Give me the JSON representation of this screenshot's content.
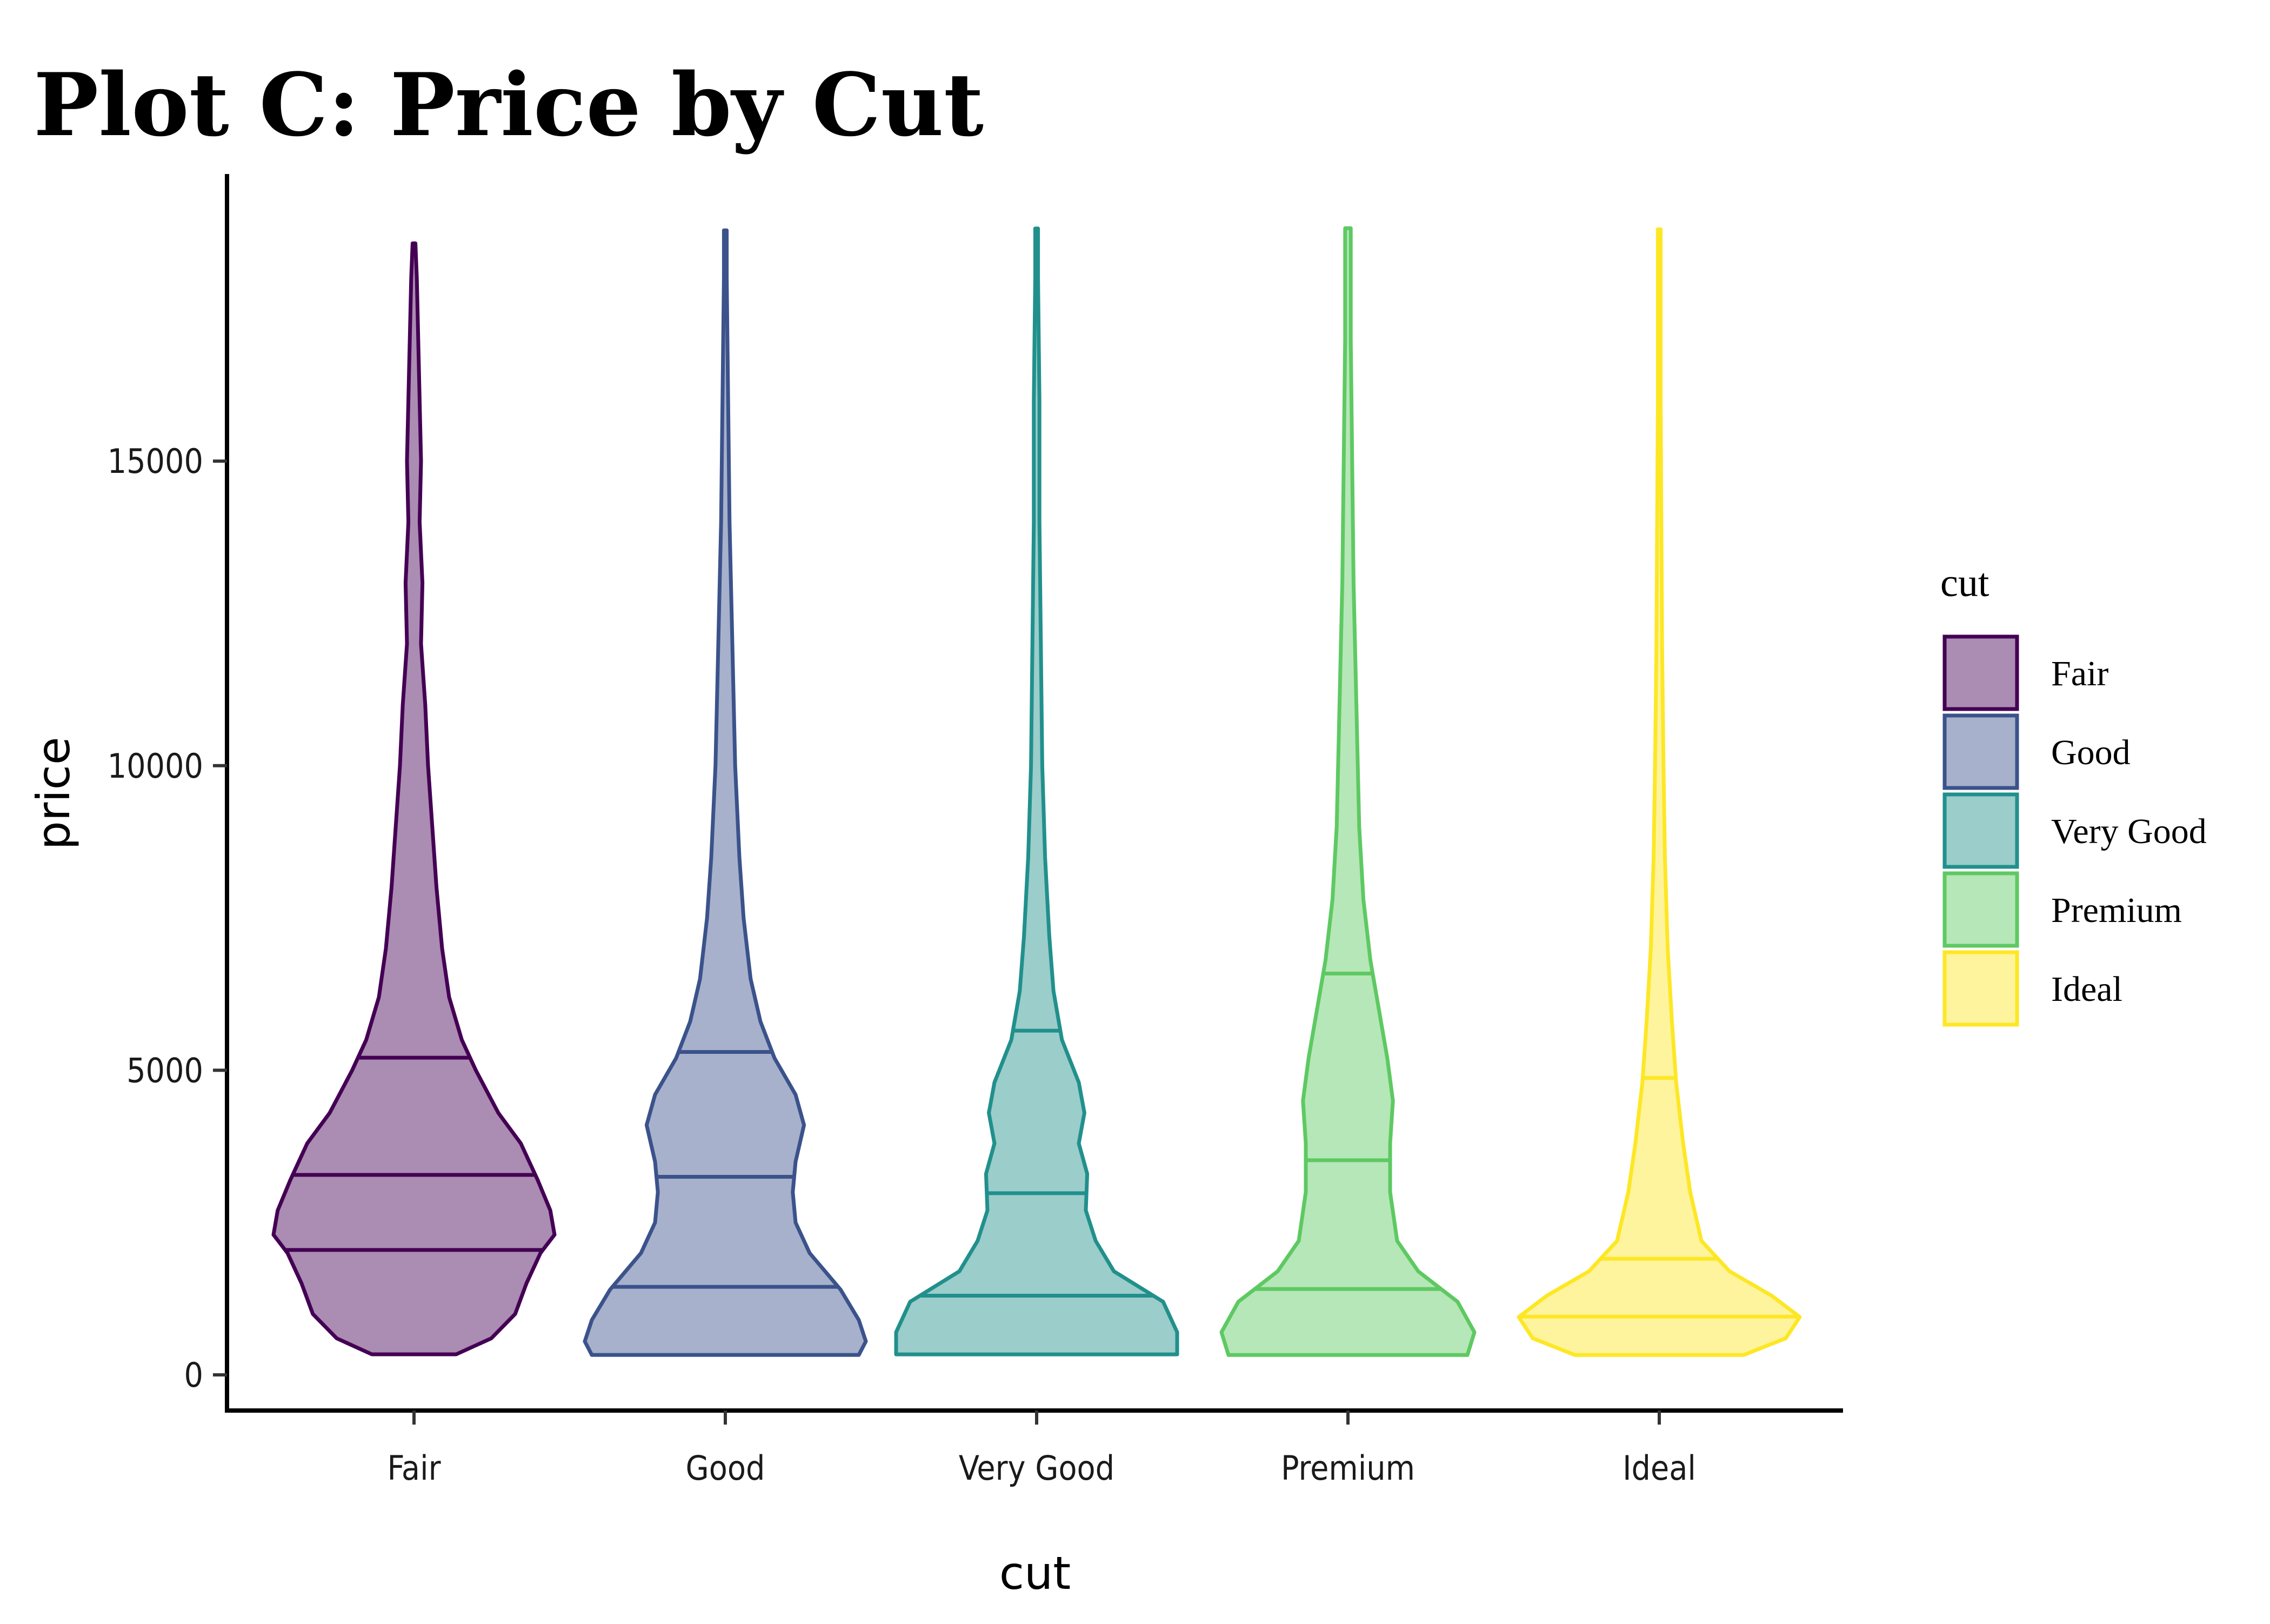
{
  "chart_data": {
    "type": "violin",
    "title": "Plot C: Price by Cut",
    "xlabel": "cut",
    "ylabel": "price",
    "categories": [
      "Fair",
      "Good",
      "Very Good",
      "Premium",
      "Ideal"
    ],
    "ylim": [
      0,
      19000
    ],
    "yticks": [
      0,
      5000,
      10000,
      15000
    ],
    "grid": false,
    "legend": {
      "title": "cut",
      "placement": "right",
      "entries": [
        "Fair",
        "Good",
        "Very Good",
        "Premium",
        "Ideal"
      ]
    },
    "colors": [
      "#440154",
      "#3b528b",
      "#21908c",
      "#5ec962",
      "#fde725"
    ],
    "fill_opacity": 0.45,
    "series": [
      {
        "category": "Fair",
        "min": 337,
        "max": 18574,
        "quantiles": [
          2050,
          3282,
          5206
        ],
        "density": [
          [
            337,
            0.3
          ],
          [
            600,
            0.55
          ],
          [
            1000,
            0.72
          ],
          [
            1500,
            0.8
          ],
          [
            2000,
            0.9
          ],
          [
            2300,
            1.0
          ],
          [
            2700,
            0.97
          ],
          [
            3200,
            0.88
          ],
          [
            3800,
            0.76
          ],
          [
            4300,
            0.6
          ],
          [
            5000,
            0.44
          ],
          [
            5500,
            0.34
          ],
          [
            6200,
            0.25
          ],
          [
            7000,
            0.2
          ],
          [
            8000,
            0.16
          ],
          [
            9000,
            0.13
          ],
          [
            10000,
            0.1
          ],
          [
            11000,
            0.08
          ],
          [
            12000,
            0.05
          ],
          [
            13000,
            0.06
          ],
          [
            14000,
            0.04
          ],
          [
            15000,
            0.05
          ],
          [
            16000,
            0.04
          ],
          [
            17000,
            0.03
          ],
          [
            18000,
            0.02
          ],
          [
            18574,
            0.01
          ]
        ]
      },
      {
        "category": "Good",
        "min": 327,
        "max": 18788,
        "quantiles": [
          1445,
          3251,
          5301
        ],
        "density": [
          [
            327,
            0.95
          ],
          [
            550,
            1.0
          ],
          [
            900,
            0.95
          ],
          [
            1400,
            0.82
          ],
          [
            2000,
            0.6
          ],
          [
            2500,
            0.5
          ],
          [
            3000,
            0.48
          ],
          [
            3500,
            0.5
          ],
          [
            4100,
            0.56
          ],
          [
            4600,
            0.5
          ],
          [
            5200,
            0.35
          ],
          [
            5800,
            0.25
          ],
          [
            6500,
            0.18
          ],
          [
            7500,
            0.13
          ],
          [
            8500,
            0.1
          ],
          [
            10000,
            0.07
          ],
          [
            12000,
            0.05
          ],
          [
            14000,
            0.03
          ],
          [
            16000,
            0.02
          ],
          [
            18000,
            0.01
          ],
          [
            18788,
            0.01
          ]
        ]
      },
      {
        "category": "Very Good",
        "min": 336,
        "max": 18818,
        "quantiles": [
          1300,
          2982,
          5650
        ],
        "density": [
          [
            336,
            1.0
          ],
          [
            700,
            1.0
          ],
          [
            1200,
            0.9
          ],
          [
            1700,
            0.55
          ],
          [
            2200,
            0.42
          ],
          [
            2700,
            0.35
          ],
          [
            3300,
            0.36
          ],
          [
            3800,
            0.3
          ],
          [
            4300,
            0.34
          ],
          [
            4800,
            0.3
          ],
          [
            5500,
            0.18
          ],
          [
            6300,
            0.12
          ],
          [
            7200,
            0.09
          ],
          [
            8500,
            0.06
          ],
          [
            10000,
            0.04
          ],
          [
            12000,
            0.03
          ],
          [
            14000,
            0.02
          ],
          [
            16000,
            0.02
          ],
          [
            18000,
            0.01
          ],
          [
            18818,
            0.01
          ]
        ]
      },
      {
        "category": "Premium",
        "min": 326,
        "max": 18823,
        "quantiles": [
          1409,
          3523,
          6588
        ],
        "density": [
          [
            326,
            0.85
          ],
          [
            700,
            0.9
          ],
          [
            1200,
            0.78
          ],
          [
            1700,
            0.5
          ],
          [
            2200,
            0.35
          ],
          [
            3000,
            0.3
          ],
          [
            3800,
            0.3
          ],
          [
            4500,
            0.32
          ],
          [
            5200,
            0.28
          ],
          [
            6000,
            0.22
          ],
          [
            6800,
            0.16
          ],
          [
            7800,
            0.11
          ],
          [
            9000,
            0.08
          ],
          [
            11000,
            0.06
          ],
          [
            13000,
            0.04
          ],
          [
            15000,
            0.03
          ],
          [
            17000,
            0.02
          ],
          [
            18823,
            0.02
          ]
        ]
      },
      {
        "category": "Ideal",
        "min": 326,
        "max": 18806,
        "quantiles": [
          956,
          1905,
          4874
        ],
        "density": [
          [
            326,
            0.6
          ],
          [
            600,
            0.9
          ],
          [
            950,
            1.0
          ],
          [
            1300,
            0.8
          ],
          [
            1700,
            0.5
          ],
          [
            2200,
            0.3
          ],
          [
            3000,
            0.22
          ],
          [
            3800,
            0.17
          ],
          [
            4800,
            0.12
          ],
          [
            5800,
            0.09
          ],
          [
            7000,
            0.06
          ],
          [
            8500,
            0.04
          ],
          [
            10000,
            0.03
          ],
          [
            12000,
            0.02
          ],
          [
            14000,
            0.015
          ],
          [
            16000,
            0.01
          ],
          [
            18806,
            0.01
          ]
        ]
      }
    ]
  }
}
